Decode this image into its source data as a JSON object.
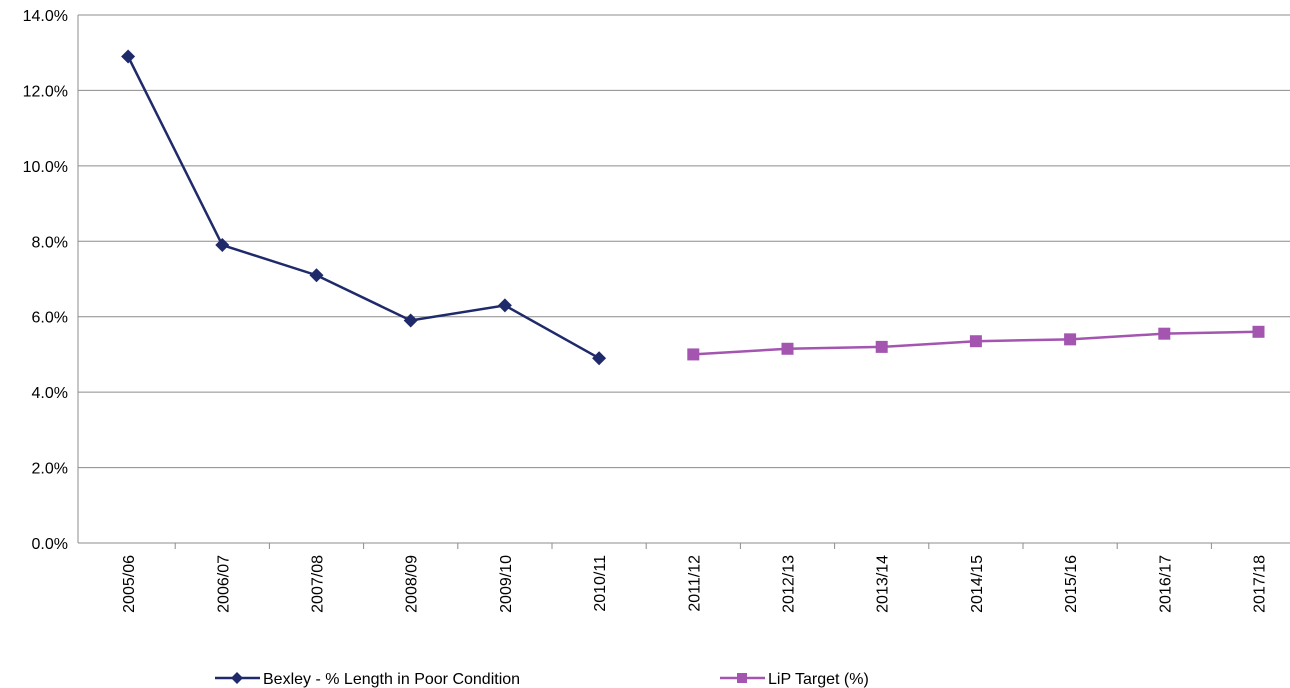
{
  "chart_data": {
    "type": "line",
    "categories": [
      "2005/06",
      "2006/07",
      "2007/08",
      "2008/09",
      "2009/10",
      "2010/11",
      "2011/12",
      "2012/13",
      "2013/14",
      "2014/15",
      "2015/16",
      "2016/17",
      "2017/18"
    ],
    "series": [
      {
        "name": "Bexley - % Length in Poor Condition",
        "color": "#1f2a6b",
        "marker": "diamond",
        "values": [
          12.9,
          7.9,
          7.1,
          5.9,
          6.3,
          4.9,
          null,
          null,
          null,
          null,
          null,
          null,
          null
        ]
      },
      {
        "name": "LiP Target (%)",
        "color": "#a355b0",
        "marker": "square",
        "values": [
          null,
          null,
          null,
          null,
          null,
          null,
          5.0,
          5.15,
          5.2,
          5.35,
          5.4,
          5.55,
          5.6
        ]
      }
    ],
    "ylim": [
      0,
      14
    ],
    "yticks": [
      {
        "value": 0,
        "label": "0.0%"
      },
      {
        "value": 2,
        "label": "2.0%"
      },
      {
        "value": 4,
        "label": "4.0%"
      },
      {
        "value": 6,
        "label": "6.0%"
      },
      {
        "value": 8,
        "label": "8.0%"
      },
      {
        "value": 10,
        "label": "10.0%"
      },
      {
        "value": 12,
        "label": "12.0%"
      },
      {
        "value": 14,
        "label": "14.0%"
      }
    ],
    "grid": true,
    "legend": "bottom"
  }
}
